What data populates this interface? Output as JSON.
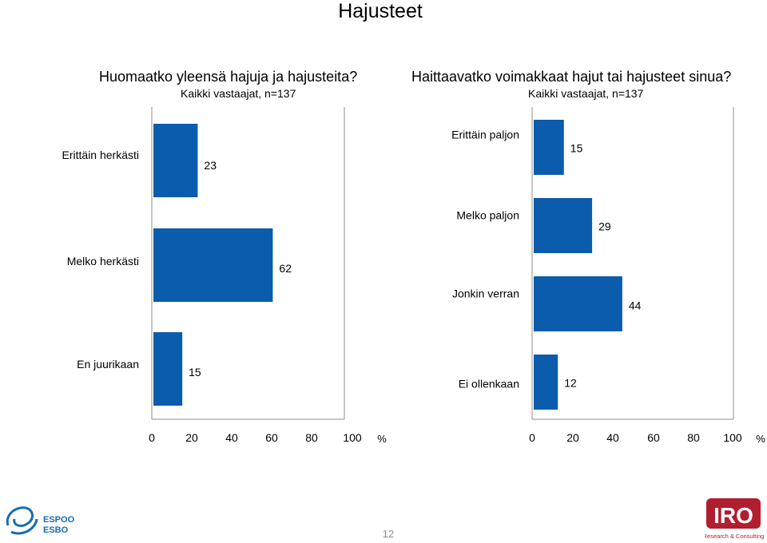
{
  "page": {
    "title": "Hajusteet",
    "page_number": "12",
    "logos": {
      "espoo_line1": "ESPOO",
      "espoo_line2": "ESBO",
      "iro_text": "IRO",
      "iro_tagline": "Research & Consulting"
    }
  },
  "colors": {
    "bar": "#0b5cad",
    "frame": "#8c8c8c",
    "espoo_blue": "#1a6bb3",
    "iro_red": "#b01e2f"
  },
  "chart_data": [
    {
      "type": "bar",
      "orientation": "horizontal",
      "title": "Huomaatko yleensä hajuja ja hajusteita?",
      "subtitle": "Kaikki vastaajat, n=137",
      "categories": [
        "Erittäin herkästi",
        "Melko herkästi",
        "En juurikaan"
      ],
      "values": [
        23,
        62,
        15
      ],
      "value_labels": [
        "23",
        "62",
        "15"
      ],
      "xlim": [
        0,
        100
      ],
      "xticks": [
        "0",
        "20",
        "40",
        "60",
        "80",
        "100"
      ],
      "unit": "%"
    },
    {
      "type": "bar",
      "orientation": "horizontal",
      "title": "Haittaavatko voimakkaat hajut tai hajusteet sinua?",
      "subtitle": "Kaikki vastaajat, n=137",
      "categories": [
        "Erittäin paljon",
        "Melko paljon",
        "Jonkin verran",
        "Ei ollenkaan"
      ],
      "values": [
        15,
        29,
        44,
        12
      ],
      "value_labels": [
        "15",
        "29",
        "44",
        "12"
      ],
      "xlim": [
        0,
        100
      ],
      "xticks": [
        "0",
        "20",
        "40",
        "60",
        "80",
        "100"
      ],
      "unit": "%"
    }
  ]
}
